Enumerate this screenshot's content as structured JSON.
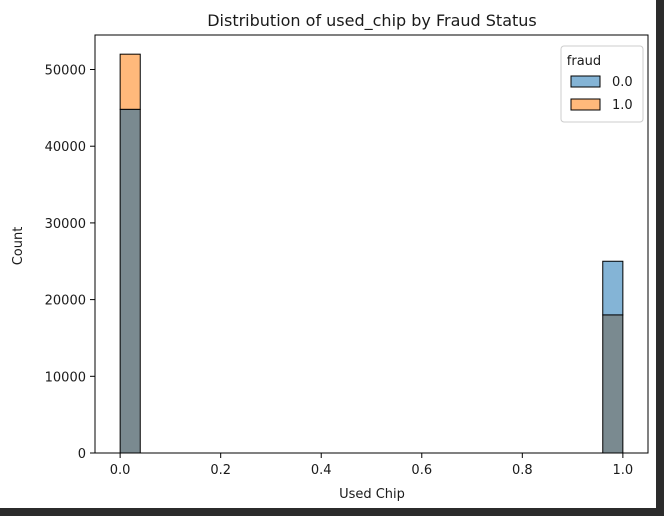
{
  "chart_data": {
    "type": "bar",
    "title": "Distribution of used_chip by Fraud Status",
    "xlabel": "Used Chip",
    "ylabel": "Count",
    "xlim": [
      -0.05,
      1.05
    ],
    "ylim": [
      0,
      54500
    ],
    "x_ticks": [
      "0.0",
      "0.2",
      "0.4",
      "0.6",
      "0.8",
      "1.0"
    ],
    "x_tick_values": [
      0.0,
      0.2,
      0.4,
      0.6,
      0.8,
      1.0
    ],
    "y_ticks": [
      "0",
      "10000",
      "20000",
      "30000",
      "40000",
      "50000"
    ],
    "y_tick_values": [
      0,
      10000,
      20000,
      30000,
      40000,
      50000
    ],
    "bin_width": 0.04,
    "bins": [
      0.0,
      0.96
    ],
    "series": [
      {
        "name": "0.0",
        "color": "#1f77b4",
        "values": [
          44800,
          25000
        ]
      },
      {
        "name": "1.0",
        "color": "#ff7f0e",
        "values": [
          52000,
          18000
        ]
      }
    ],
    "legend": {
      "title": "fraud",
      "position": "top-right"
    },
    "grid": false,
    "overlap_color": "#7a8a90"
  }
}
